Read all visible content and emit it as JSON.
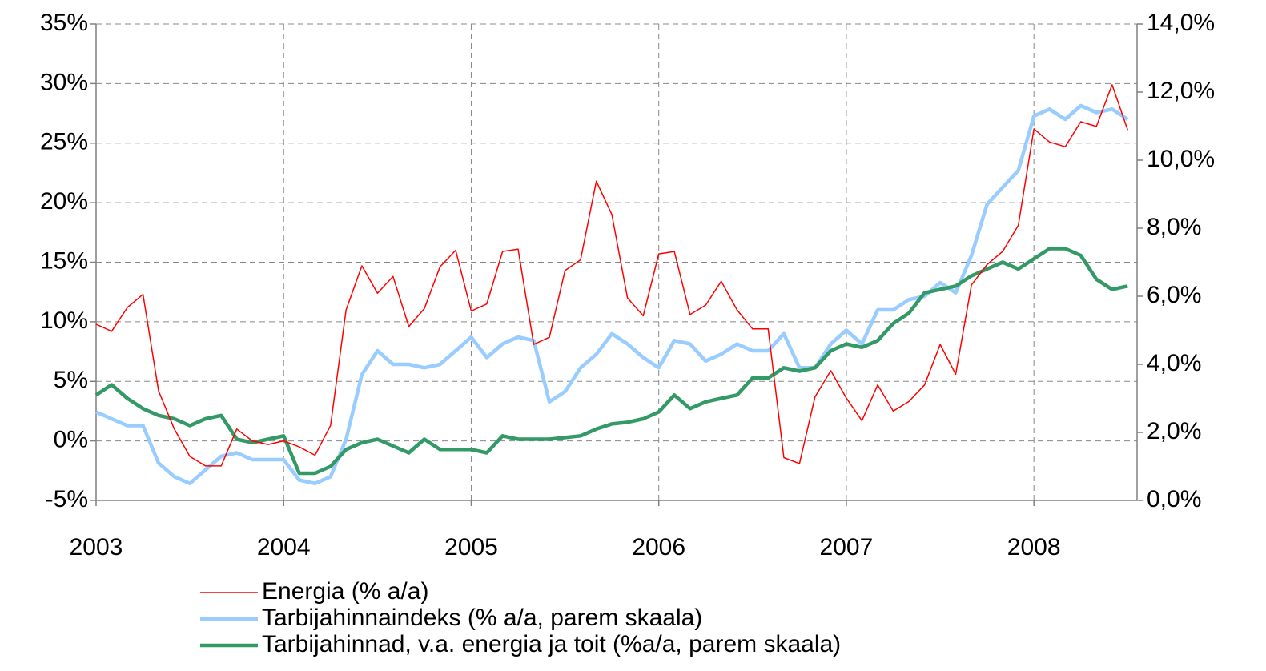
{
  "chart_data": {
    "type": "line",
    "x": [
      2003,
      2003.083,
      2003.167,
      2003.25,
      2003.333,
      2003.417,
      2003.5,
      2003.583,
      2003.667,
      2003.75,
      2003.833,
      2003.917,
      2004,
      2004.083,
      2004.167,
      2004.25,
      2004.333,
      2004.417,
      2004.5,
      2004.583,
      2004.667,
      2004.75,
      2004.833,
      2004.917,
      2005,
      2005.083,
      2005.167,
      2005.25,
      2005.333,
      2005.417,
      2005.5,
      2005.583,
      2005.667,
      2005.75,
      2005.833,
      2005.917,
      2006,
      2006.083,
      2006.167,
      2006.25,
      2006.333,
      2006.417,
      2006.5,
      2006.583,
      2006.667,
      2006.75,
      2006.833,
      2006.917,
      2007,
      2007.083,
      2007.167,
      2007.25,
      2007.333,
      2007.417,
      2007.5,
      2007.583,
      2007.667,
      2007.75,
      2007.833,
      2007.917,
      2008,
      2008.083,
      2008.167,
      2008.25,
      2008.333,
      2008.417,
      2008.5
    ],
    "series": [
      {
        "name": "Energia (% a/a)",
        "color": "#ff0000",
        "values": [
          9.8,
          9.2,
          11.2,
          12.3,
          4.2,
          1.0,
          -1.3,
          -2.1,
          -2.1,
          1.0,
          0.0,
          -0.3,
          0.0,
          -0.5,
          -1.2,
          1.3,
          11.0,
          14.7,
          12.4,
          13.8,
          9.6,
          11.1,
          14.6,
          16.0,
          10.9,
          11.5,
          15.9,
          16.1,
          8.1,
          8.7,
          14.3,
          15.2,
          21.8,
          19.0,
          12.0,
          10.5,
          15.7,
          15.9,
          10.6,
          11.4,
          13.4,
          11.0,
          9.4,
          9.4,
          -1.4,
          -1.9,
          3.7,
          5.9,
          3.6,
          1.7,
          4.7,
          2.5,
          3.3,
          4.7,
          8.1,
          5.6,
          13.1,
          14.8,
          15.9,
          18.1,
          26.2,
          25.1,
          24.7,
          26.8,
          26.4,
          29.9,
          26.1
        ]
      },
      {
        "name": "Tarbijahinnaindeks (% a/a, parem skaala)",
        "color": "#99ccff",
        "axis": "y2",
        "values": [
          2.6,
          2.4,
          2.2,
          2.2,
          1.1,
          0.7,
          0.5,
          0.9,
          1.3,
          1.4,
          1.2,
          1.2,
          1.2,
          0.6,
          0.5,
          0.7,
          1.8,
          3.7,
          4.4,
          4.0,
          4.0,
          3.9,
          4.0,
          4.4,
          4.8,
          4.2,
          4.6,
          4.8,
          4.7,
          2.9,
          3.2,
          3.9,
          4.3,
          4.9,
          4.6,
          4.2,
          3.9,
          4.7,
          4.6,
          4.1,
          4.3,
          4.6,
          4.4,
          4.4,
          4.9,
          3.9,
          3.9,
          4.6,
          5.0,
          4.6,
          5.6,
          5.6,
          5.9,
          6.0,
          6.4,
          6.1,
          7.2,
          8.7,
          9.2,
          9.7,
          11.3,
          11.5,
          11.2,
          11.6,
          11.4,
          11.5,
          11.2
        ]
      },
      {
        "name": "Tarbijahinnad, v.a. energia ja toit (%a/a, parem skaala)",
        "color": "#339966",
        "axis": "y2",
        "values": [
          3.1,
          3.4,
          3.0,
          2.7,
          2.5,
          2.4,
          2.2,
          2.4,
          2.5,
          1.8,
          1.7,
          1.8,
          1.9,
          0.8,
          0.8,
          1.0,
          1.5,
          1.7,
          1.8,
          1.6,
          1.4,
          1.8,
          1.5,
          1.5,
          1.5,
          1.4,
          1.9,
          1.8,
          1.8,
          1.8,
          1.85,
          1.9,
          2.1,
          2.25,
          2.3,
          2.4,
          2.6,
          3.1,
          2.7,
          2.9,
          3.0,
          3.1,
          3.6,
          3.6,
          3.9,
          3.8,
          3.9,
          4.4,
          4.6,
          4.5,
          4.7,
          5.2,
          5.5,
          6.1,
          6.2,
          6.3,
          6.6,
          6.8,
          7.0,
          6.8,
          7.1,
          7.4,
          7.4,
          7.2,
          6.5,
          6.2,
          6.3
        ]
      }
    ],
    "xlim": [
      2003,
      2008.55
    ],
    "xticks": [
      2003,
      2004,
      2005,
      2006,
      2007,
      2008
    ],
    "ylim": [
      -5,
      35
    ],
    "yticks": [
      {
        "value": -5,
        "label": "-5%"
      },
      {
        "value": 0,
        "label": "0%"
      },
      {
        "value": 5,
        "label": "5%"
      },
      {
        "value": 10,
        "label": "10%"
      },
      {
        "value": 15,
        "label": "15%"
      },
      {
        "value": 20,
        "label": "20%"
      },
      {
        "value": 25,
        "label": "25%"
      },
      {
        "value": 30,
        "label": "30%"
      },
      {
        "value": 35,
        "label": "35%"
      }
    ],
    "y2lim": [
      0,
      14
    ],
    "y2ticks": [
      {
        "value": 0,
        "label": "0,0%"
      },
      {
        "value": 2,
        "label": "2,0%"
      },
      {
        "value": 4,
        "label": "4,0%"
      },
      {
        "value": 6,
        "label": "6,0%"
      },
      {
        "value": 8,
        "label": "8,0%"
      },
      {
        "value": 10,
        "label": "10,0%"
      },
      {
        "value": 12,
        "label": "12,0%"
      },
      {
        "value": 14,
        "label": "14,0%"
      }
    ],
    "grid": true,
    "legend": "bottom"
  }
}
